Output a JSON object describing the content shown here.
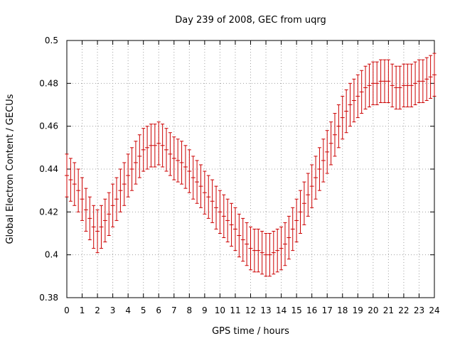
{
  "chart_data": {
    "type": "line",
    "title": "Day 239 of 2008, GEC from uqrg",
    "xlabel": "GPS time / hours",
    "ylabel": "Global Electron Content / GECUs",
    "xlim": [
      0,
      24
    ],
    "ylim": [
      0.38,
      0.5
    ],
    "grid": true,
    "error_half_width": 0.01,
    "x_ticks": [
      0,
      1,
      2,
      3,
      4,
      5,
      6,
      7,
      8,
      9,
      10,
      11,
      12,
      13,
      14,
      15,
      16,
      17,
      18,
      19,
      20,
      21,
      22,
      23,
      24
    ],
    "y_ticks": [
      0.38,
      0.4,
      0.42,
      0.44,
      0.46,
      0.48,
      0.5
    ],
    "y_tick_labels": [
      "0.38",
      "0.4",
      "0.42",
      "0.44",
      "0.46",
      "0.48",
      "0.5"
    ],
    "series": [
      {
        "name": "GEC",
        "color": "#cc0000",
        "x": [
          0,
          0.25,
          0.5,
          0.75,
          1,
          1.25,
          1.5,
          1.75,
          2,
          2.25,
          2.5,
          2.75,
          3,
          3.25,
          3.5,
          3.75,
          4,
          4.25,
          4.5,
          4.75,
          5,
          5.25,
          5.5,
          5.75,
          6,
          6.25,
          6.5,
          6.75,
          7,
          7.25,
          7.5,
          7.75,
          8,
          8.25,
          8.5,
          8.75,
          9,
          9.25,
          9.5,
          9.75,
          10,
          10.25,
          10.5,
          10.75,
          11,
          11.25,
          11.5,
          11.75,
          12,
          12.25,
          12.5,
          12.75,
          13,
          13.25,
          13.5,
          13.75,
          14,
          14.25,
          14.5,
          14.75,
          15,
          15.25,
          15.5,
          15.75,
          16,
          16.25,
          16.5,
          16.75,
          17,
          17.25,
          17.5,
          17.75,
          18,
          18.25,
          18.5,
          18.75,
          19,
          19.25,
          19.5,
          19.75,
          20,
          20.25,
          20.5,
          20.75,
          21,
          21.25,
          21.5,
          21.75,
          22,
          22.25,
          22.5,
          22.75,
          23,
          23.25,
          23.5,
          23.75,
          24
        ],
        "y": [
          0.437,
          0.435,
          0.433,
          0.43,
          0.426,
          0.421,
          0.417,
          0.413,
          0.411,
          0.413,
          0.416,
          0.419,
          0.423,
          0.426,
          0.43,
          0.433,
          0.437,
          0.44,
          0.443,
          0.446,
          0.449,
          0.45,
          0.451,
          0.451,
          0.452,
          0.451,
          0.449,
          0.447,
          0.445,
          0.444,
          0.443,
          0.441,
          0.439,
          0.436,
          0.434,
          0.432,
          0.429,
          0.427,
          0.425,
          0.422,
          0.42,
          0.418,
          0.416,
          0.414,
          0.412,
          0.409,
          0.407,
          0.405,
          0.403,
          0.402,
          0.402,
          0.401,
          0.4,
          0.4,
          0.401,
          0.402,
          0.403,
          0.405,
          0.408,
          0.412,
          0.416,
          0.42,
          0.424,
          0.428,
          0.432,
          0.436,
          0.44,
          0.444,
          0.448,
          0.452,
          0.456,
          0.46,
          0.464,
          0.467,
          0.47,
          0.472,
          0.474,
          0.476,
          0.478,
          0.479,
          0.48,
          0.48,
          0.481,
          0.481,
          0.481,
          0.479,
          0.478,
          0.478,
          0.479,
          0.479,
          0.479,
          0.48,
          0.481,
          0.481,
          0.482,
          0.483,
          0.484
        ]
      }
    ]
  }
}
